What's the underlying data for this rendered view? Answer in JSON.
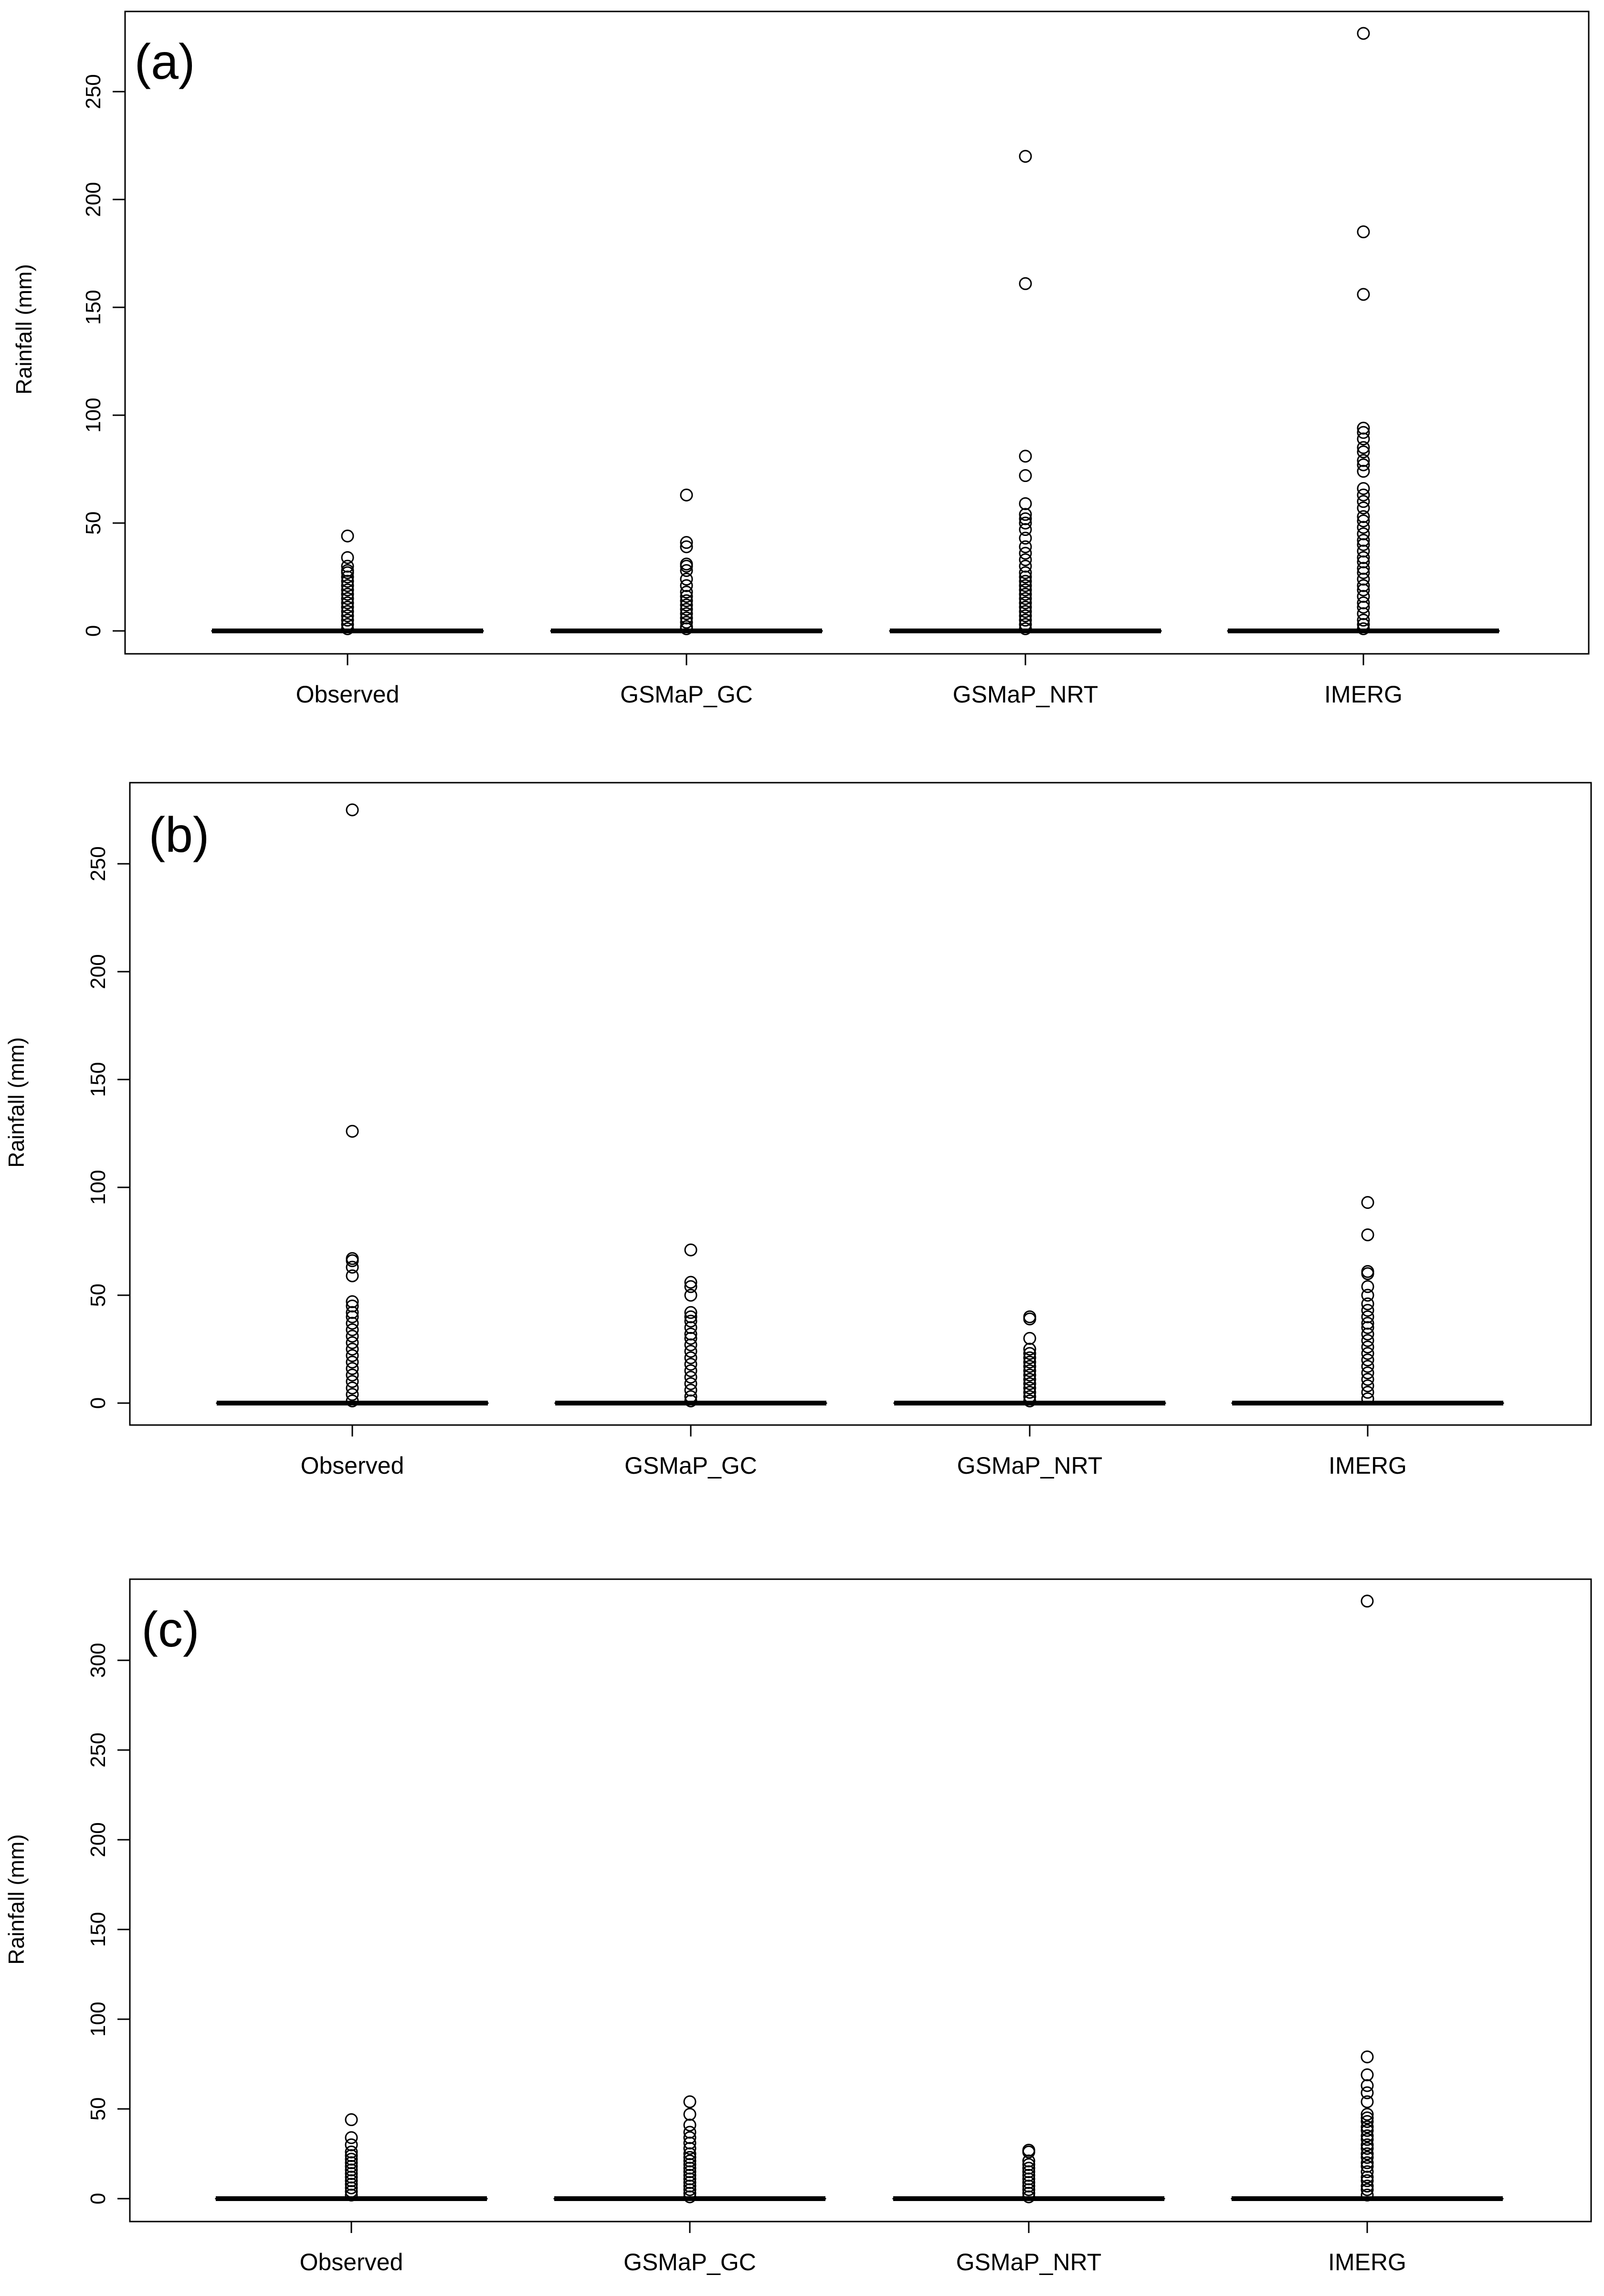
{
  "chart_data": [
    {
      "type": "boxplot",
      "panel_label": "(a)",
      "ylabel": "Rainfall (mm)",
      "ylim": [
        0,
        285
      ],
      "yticks": [
        0,
        50,
        100,
        150,
        200,
        250
      ],
      "categories": [
        "Observed",
        "GSMaP_GC",
        "GSMaP_NRT",
        "IMERG"
      ],
      "series": [
        {
          "name": "Observed",
          "median": 0,
          "q1": 0,
          "q3": 0,
          "outliers": [
            44,
            34,
            30,
            28,
            27,
            25,
            23,
            21,
            19,
            17,
            15,
            13,
            11,
            9,
            7,
            5,
            3,
            1
          ]
        },
        {
          "name": "GSMaP_GC",
          "median": 0,
          "q1": 0,
          "q3": 0,
          "outliers": [
            63,
            41,
            39,
            31,
            30,
            28,
            24,
            21,
            18,
            16,
            14,
            12,
            10,
            8,
            6,
            4,
            2,
            1
          ]
        },
        {
          "name": "GSMaP_NRT",
          "median": 0,
          "q1": 0,
          "q3": 0,
          "outliers": [
            220,
            161,
            81,
            72,
            59,
            54,
            52,
            50,
            47,
            43,
            39,
            36,
            33,
            30,
            27,
            25,
            23,
            21,
            19,
            17,
            15,
            13,
            11,
            9,
            7,
            5,
            3,
            1
          ]
        },
        {
          "name": "IMERG",
          "median": 0,
          "q1": 0,
          "q3": 0,
          "outliers": [
            277,
            185,
            156,
            94,
            92,
            89,
            85,
            83,
            79,
            77,
            74,
            66,
            63,
            60,
            57,
            53,
            51,
            48,
            45,
            42,
            40,
            37,
            34,
            32,
            29,
            27,
            24,
            21,
            19,
            16,
            13,
            11,
            8,
            5,
            3,
            1
          ]
        }
      ]
    },
    {
      "type": "boxplot",
      "panel_label": "(b)",
      "ylabel": "Rainfall (mm)",
      "ylim": [
        0,
        285
      ],
      "yticks": [
        0,
        50,
        100,
        150,
        200,
        250
      ],
      "categories": [
        "Observed",
        "GSMaP_GC",
        "GSMaP_NRT",
        "IMERG"
      ],
      "series": [
        {
          "name": "Observed",
          "median": 0,
          "q1": 0,
          "q3": 0,
          "outliers": [
            275,
            126,
            67,
            66,
            63,
            59,
            47,
            45,
            42,
            40,
            37,
            34,
            31,
            28,
            25,
            22,
            19,
            16,
            13,
            10,
            7,
            4,
            1
          ]
        },
        {
          "name": "GSMaP_GC",
          "median": 0,
          "q1": 0,
          "q3": 0,
          "outliers": [
            71,
            56,
            54,
            50,
            42,
            40,
            38,
            35,
            32,
            30,
            27,
            24,
            21,
            18,
            15,
            12,
            9,
            6,
            3,
            1
          ]
        },
        {
          "name": "GSMaP_NRT",
          "median": 0,
          "q1": 0,
          "q3": 0,
          "outliers": [
            40,
            39,
            30,
            25,
            23,
            21,
            19,
            17,
            15,
            13,
            11,
            9,
            7,
            5,
            3,
            1
          ]
        },
        {
          "name": "IMERG",
          "median": 0,
          "q1": 0,
          "q3": 0,
          "outliers": [
            93,
            78,
            61,
            60,
            54,
            50,
            46,
            43,
            40,
            37,
            35,
            32,
            29,
            26,
            23,
            20,
            17,
            14,
            11,
            8,
            5,
            2
          ]
        }
      ]
    },
    {
      "type": "boxplot",
      "panel_label": "(c)",
      "ylabel": "Rainfall (mm)",
      "ylim": [
        0,
        345
      ],
      "yticks": [
        0,
        50,
        100,
        150,
        200,
        250,
        300
      ],
      "categories": [
        "Observed",
        "GSMaP_GC",
        "GSMaP_NRT",
        "IMERG"
      ],
      "series": [
        {
          "name": "Observed",
          "median": 0,
          "q1": 0,
          "q3": 0,
          "outliers": [
            44,
            34,
            30,
            26,
            24,
            22,
            20,
            18,
            16,
            14,
            12,
            10,
            8,
            6,
            4,
            2
          ]
        },
        {
          "name": "GSMaP_GC",
          "median": 0,
          "q1": 0,
          "q3": 0,
          "outliers": [
            54,
            47,
            41,
            37,
            34,
            31,
            28,
            25,
            23,
            21,
            19,
            17,
            15,
            13,
            11,
            9,
            7,
            5,
            3,
            1
          ]
        },
        {
          "name": "GSMaP_NRT",
          "median": 0,
          "q1": 0,
          "q3": 0,
          "outliers": [
            27,
            26,
            21,
            19,
            17,
            15,
            13,
            11,
            9,
            7,
            5,
            3,
            1
          ]
        },
        {
          "name": "IMERG",
          "median": 0,
          "q1": 0,
          "q3": 0,
          "outliers": [
            333,
            79,
            69,
            63,
            59,
            54,
            47,
            45,
            43,
            40,
            38,
            35,
            33,
            30,
            28,
            25,
            23,
            20,
            18,
            15,
            12,
            10,
            7,
            5,
            2
          ]
        }
      ]
    }
  ]
}
